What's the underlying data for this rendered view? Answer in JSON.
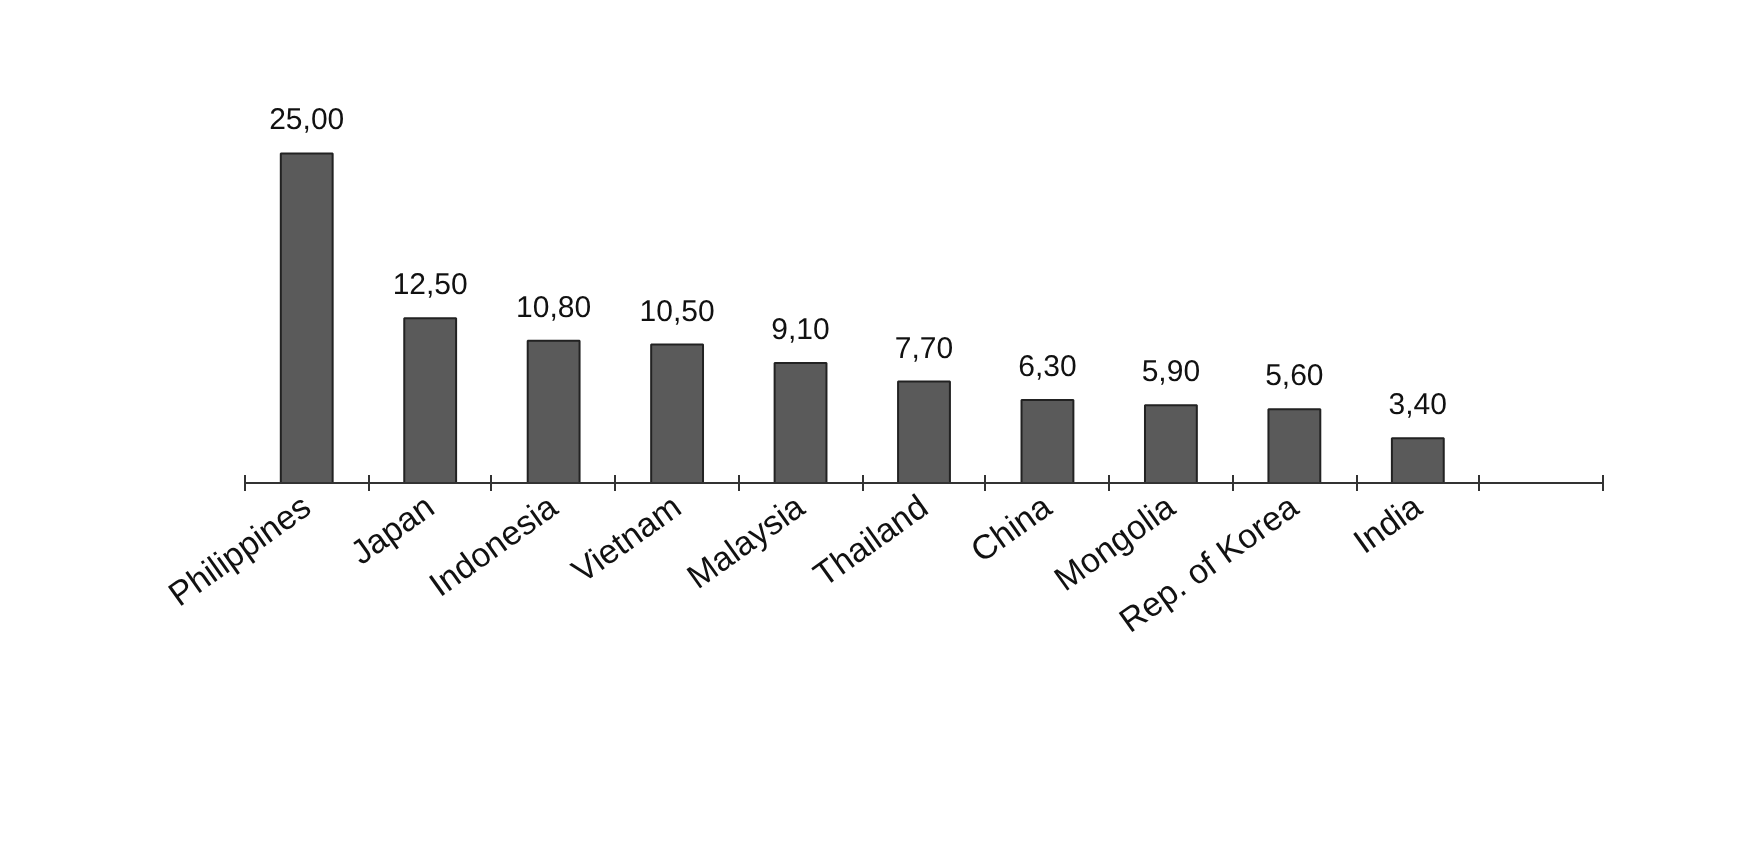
{
  "chart_data": {
    "type": "bar",
    "categories": [
      "Philippines",
      "Japan",
      "Indonesia",
      "Vietnam",
      "Malaysia",
      "Thailand",
      "China",
      "Mongolia",
      "Rep. of Korea",
      "India",
      null
    ],
    "values": [
      25.0,
      12.5,
      10.8,
      10.5,
      9.1,
      7.7,
      6.3,
      5.9,
      5.6,
      3.4,
      null
    ],
    "value_labels": [
      "25,00",
      "12,50",
      "10,80",
      "10,50",
      "9,10",
      "7,70",
      "6,30",
      "5,90",
      "5,60",
      "3,40",
      null
    ],
    "color": "#5a5a5a",
    "grid": false
  }
}
